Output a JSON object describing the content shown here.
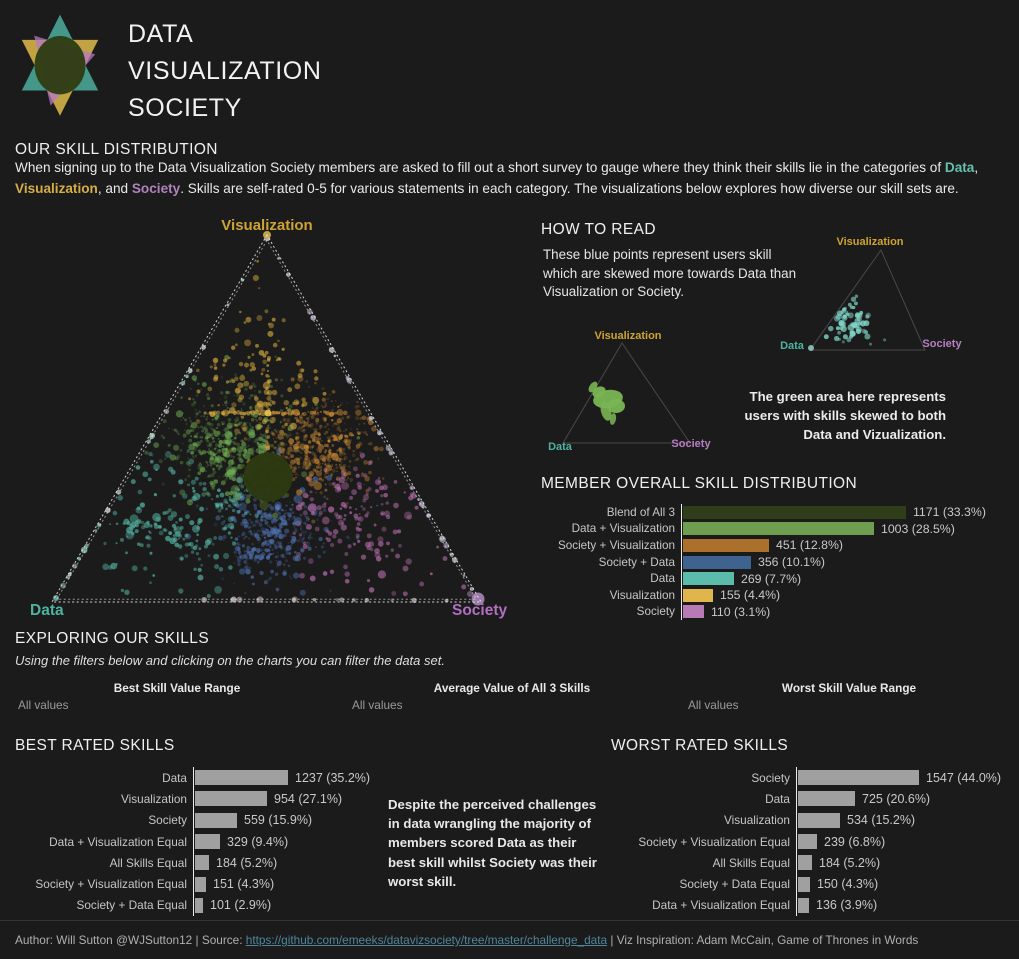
{
  "header": {
    "title": "DATA\nVISUALIZATION\nSOCIETY",
    "logo": "dvs-star-logo"
  },
  "intro": {
    "heading": "OUR SKILL DISTRIBUTION",
    "segments": [
      {
        "text": "When signing up to the Data Visualization Society members are asked to fill out a short survey to gauge where they think their skills lie in the categories of ",
        "style": "plain"
      },
      {
        "text": "Data",
        "style": "data"
      },
      {
        "text": ", ",
        "style": "plain"
      },
      {
        "text": "Visualization",
        "style": "visualization"
      },
      {
        "text": ", and ",
        "style": "plain"
      },
      {
        "text": "Society",
        "style": "society"
      },
      {
        "text": ". Skills are self-rated 0-5 for various statements in each category. The visualizations below explores how diverse our skill sets are.",
        "style": "plain"
      }
    ]
  },
  "ternary_labels": {
    "top": "Visualization",
    "left": "Data",
    "right": "Society"
  },
  "how_to_read": {
    "heading": "HOW TO READ",
    "blue_note": "These blue points represent users skill\nwhich are skewed more towards Data than\nVisualization or Society.",
    "green_note": "The green area here represents\nusers with skills skewed to both\nData and Vizualization."
  },
  "exploring": {
    "heading": "EXPLORING OUR SKILLS",
    "subheading": "Using the filters below and clicking on the charts you can filter the data set."
  },
  "filters": {
    "items": [
      {
        "label": "Best Skill Value Range",
        "value": "All values"
      },
      {
        "label": "Average Value of All 3 Skills",
        "value": "All values"
      },
      {
        "label": "Worst Skill Value Range",
        "value": "All values"
      }
    ]
  },
  "annotation": {
    "text": "Despite the perceived challenges\nin data wrangling the majority of\nmembers scored Data as their\nbest skill whilst Society was their\nworst skill."
  },
  "footer": {
    "prefix": "Author: Will Sutton @WJSutton12 | Source: ",
    "link": "https://github.com/emeeks/datavizsociety/tree/master/challenge_data",
    "suffix": " | Viz Inspiration: Adam McCain, Game of Thrones in Words"
  },
  "colors": {
    "background": "#1b1b1b",
    "accent_data": "#63c1ae",
    "accent_visualization": "#d6ae47",
    "accent_society": "#b083bb",
    "link": "#4e869c",
    "bar_gray": "#a0a0a0",
    "axis_line": "#ececec"
  },
  "chart_data": [
    {
      "id": "main_ternary",
      "type": "scatter",
      "variant": "ternary",
      "axes": {
        "top": "Visualization",
        "left": "Data",
        "right": "Society"
      },
      "axis_colors": {
        "Visualization": "#cda433",
        "Data": "#4db3a0",
        "Society": "#b06fc0"
      },
      "description": "Dense ternary scatter of member self-rated skills; points colored by dominant skill mix, dark blend mass at center.",
      "region_colors": {
        "blend_all_3": "#44581d",
        "data_plus_visualization": "#6fae52",
        "society_plus_visualization": "#cc8a33",
        "society_plus_data": "#5379bd",
        "data": "#58bcaa",
        "visualization": "#d3a93c",
        "society": "#bb6fae"
      },
      "center_blob": {
        "label": "Blend of All 3",
        "color": "#2c3a11"
      },
      "edge_point_colors": {
        "left": "#9fd8cb",
        "right": "#c3b4cf",
        "bottom": "#b9b0b8"
      }
    },
    {
      "id": "mini_ternary_data_skew",
      "type": "scatter",
      "variant": "ternary",
      "axes": {
        "top": "Visualization",
        "left": "Data",
        "right": "Society"
      },
      "point_color": "#7fd2c4",
      "description": "Blue points skewed more towards Data than Visualization or Society."
    },
    {
      "id": "mini_ternary_dataviz_area",
      "type": "scatter",
      "variant": "ternary",
      "axes": {
        "top": "Visualization",
        "left": "Data",
        "right": "Society"
      },
      "area_color": "#7ab554",
      "description": "Green area of users with skills skewed to both Data and Visualization."
    },
    {
      "id": "member_overall",
      "type": "bar",
      "title": "MEMBER OVERALL SKILL DISTRIBUTION",
      "rows": [
        {
          "label": "Blend of All 3",
          "value": 1171,
          "display": "1171 (33.3%)",
          "color": "#2f3d1b"
        },
        {
          "label": "Data + Visualization",
          "value": 1003,
          "display": "1003 (28.5%)",
          "color": "#6f9e50"
        },
        {
          "label": "Society + Visualization",
          "value": 451,
          "display": "451 (12.8%)",
          "color": "#aa702c"
        },
        {
          "label": "Society + Data",
          "value": 356,
          "display": "356 (10.1%)",
          "color": "#3e638e"
        },
        {
          "label": "Data",
          "value": 269,
          "display": "269 (7.7%)",
          "color": "#5cbcab"
        },
        {
          "label": "Visualization",
          "value": 155,
          "display": "155 (4.4%)",
          "color": "#e0b54b"
        },
        {
          "label": "Society",
          "value": 110,
          "display": "110 (3.1%)",
          "color": "#b77ab4"
        }
      ]
    },
    {
      "id": "best_rated",
      "type": "bar",
      "title": "BEST RATED SKILLS",
      "bar_color": "#a0a0a0",
      "rows": [
        {
          "label": "Data",
          "value": 1237,
          "display": "1237 (35.2%)"
        },
        {
          "label": "Visualization",
          "value": 954,
          "display": "954 (27.1%)"
        },
        {
          "label": "Society",
          "value": 559,
          "display": "559 (15.9%)"
        },
        {
          "label": "Data + Visualization Equal",
          "value": 329,
          "display": "329 (9.4%)"
        },
        {
          "label": "All Skills Equal",
          "value": 184,
          "display": "184 (5.2%)"
        },
        {
          "label": "Society + Visualization Equal",
          "value": 151,
          "display": "151 (4.3%)"
        },
        {
          "label": "Society + Data Equal",
          "value": 101,
          "display": "101 (2.9%)"
        }
      ]
    },
    {
      "id": "worst_rated",
      "type": "bar",
      "title": "WORST RATED SKILLS",
      "bar_color": "#a0a0a0",
      "rows": [
        {
          "label": "Society",
          "value": 1547,
          "display": "1547 (44.0%)"
        },
        {
          "label": "Data",
          "value": 725,
          "display": "725 (20.6%)"
        },
        {
          "label": "Visualization",
          "value": 534,
          "display": "534 (15.2%)"
        },
        {
          "label": "Society + Visualization Equal",
          "value": 239,
          "display": "239 (6.8%)"
        },
        {
          "label": "All Skills Equal",
          "value": 184,
          "display": "184 (5.2%)"
        },
        {
          "label": "Society + Data Equal",
          "value": 150,
          "display": "150 (4.3%)"
        },
        {
          "label": "Data + Visualization Equal",
          "value": 136,
          "display": "136 (3.9%)"
        }
      ]
    }
  ]
}
